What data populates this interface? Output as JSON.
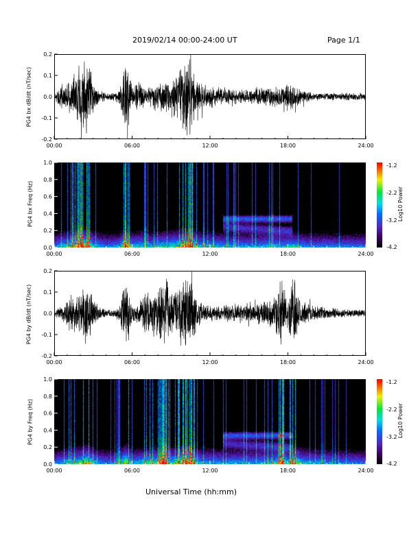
{
  "header": {
    "title": "2019/02/14  00:00-24:00 UT",
    "page": "Page 1/1"
  },
  "xlabel": "Universal Time (hh:mm)",
  "colorbar": {
    "title": "Log10 Power",
    "ticks": [
      "-1.2",
      "-2.2",
      "-3.2",
      "-4.2"
    ]
  },
  "chart_data": [
    {
      "type": "line",
      "ylabel": "PG4 bx dB/dt (nT/sec)",
      "x_range_hours": [
        0,
        24
      ],
      "xticks": [
        "00:00",
        "06:00",
        "12:00",
        "18:00",
        "24:00"
      ],
      "ylim": [
        -0.2,
        0.2
      ],
      "yticks": [
        "0.2",
        "0.1",
        "0.0",
        "-0.1",
        "-0.2"
      ],
      "envelope": {
        "hours": [
          0,
          0.5,
          1,
          1.5,
          2,
          2.5,
          3,
          3.5,
          4,
          4.5,
          5,
          5.5,
          6,
          6.5,
          7,
          7.5,
          8,
          8.5,
          9,
          9.5,
          10,
          10.5,
          11,
          11.5,
          12,
          12.5,
          13,
          13.5,
          14,
          14.5,
          15,
          15.5,
          16,
          16.5,
          17,
          17.5,
          18,
          18.5,
          19,
          19.5,
          20,
          20.5,
          21,
          21.5,
          22,
          22.5,
          23,
          23.5,
          24
        ],
        "amplitude": [
          0.02,
          0.06,
          0.08,
          0.12,
          0.2,
          0.2,
          0.08,
          0.03,
          0.02,
          0.02,
          0.04,
          0.2,
          0.05,
          0.08,
          0.06,
          0.06,
          0.08,
          0.08,
          0.1,
          0.12,
          0.2,
          0.2,
          0.08,
          0.06,
          0.06,
          0.05,
          0.05,
          0.04,
          0.04,
          0.04,
          0.04,
          0.04,
          0.05,
          0.06,
          0.06,
          0.05,
          0.07,
          0.06,
          0.04,
          0.03,
          0.02,
          0.02,
          0.02,
          0.02,
          0.02,
          0.02,
          0.02,
          0.02,
          0.02
        ]
      }
    },
    {
      "type": "heatmap",
      "ylabel": "PG4 bx Freq (Hz)",
      "x_range_hours": [
        0,
        24
      ],
      "xticks": [
        "00:00",
        "06:00",
        "12:00",
        "18:00",
        "24:00"
      ],
      "ylim": [
        0.0,
        1.0
      ],
      "yticks": [
        "1.0",
        "0.8",
        "0.6",
        "0.4",
        "0.2",
        "0.0"
      ],
      "color_range": [
        -4.2,
        -1.2
      ]
    },
    {
      "type": "line",
      "ylabel": "PG4 by dB/dt (nT/sec)",
      "x_range_hours": [
        0,
        24
      ],
      "xticks": [
        "00:00",
        "06:00",
        "12:00",
        "18:00",
        "24:00"
      ],
      "ylim": [
        -0.2,
        0.2
      ],
      "yticks": [
        "0.2",
        "0.1",
        "0.0",
        "-0.1",
        "-0.2"
      ],
      "envelope": {
        "hours": [
          0,
          0.5,
          1,
          1.5,
          2,
          2.5,
          3,
          3.5,
          4,
          4.5,
          5,
          5.5,
          6,
          6.5,
          7,
          7.5,
          8,
          8.5,
          9,
          9.5,
          10,
          10.5,
          11,
          11.5,
          12,
          12.5,
          13,
          13.5,
          14,
          14.5,
          15,
          15.5,
          16,
          16.5,
          17,
          17.5,
          18,
          18.5,
          19,
          19.5,
          20,
          20.5,
          21,
          21.5,
          22,
          22.5,
          23,
          23.5,
          24
        ],
        "amplitude": [
          0.02,
          0.04,
          0.08,
          0.1,
          0.12,
          0.2,
          0.08,
          0.03,
          0.02,
          0.02,
          0.04,
          0.2,
          0.05,
          0.06,
          0.1,
          0.12,
          0.12,
          0.2,
          0.1,
          0.14,
          0.2,
          0.2,
          0.08,
          0.05,
          0.05,
          0.04,
          0.04,
          0.05,
          0.05,
          0.05,
          0.05,
          0.05,
          0.06,
          0.07,
          0.08,
          0.2,
          0.07,
          0.2,
          0.07,
          0.06,
          0.04,
          0.04,
          0.03,
          0.03,
          0.02,
          0.02,
          0.02,
          0.02,
          0.02
        ]
      }
    },
    {
      "type": "heatmap",
      "ylabel": "PG4 by Freq (Hz)",
      "x_range_hours": [
        0,
        24
      ],
      "xticks": [
        "00:00",
        "06:00",
        "12:00",
        "18:00",
        "24:00"
      ],
      "ylim": [
        0.0,
        1.0
      ],
      "yticks": [
        "1.0",
        "0.8",
        "0.6",
        "0.4",
        "0.2",
        "0.0"
      ],
      "color_range": [
        -4.2,
        -1.2
      ]
    }
  ]
}
